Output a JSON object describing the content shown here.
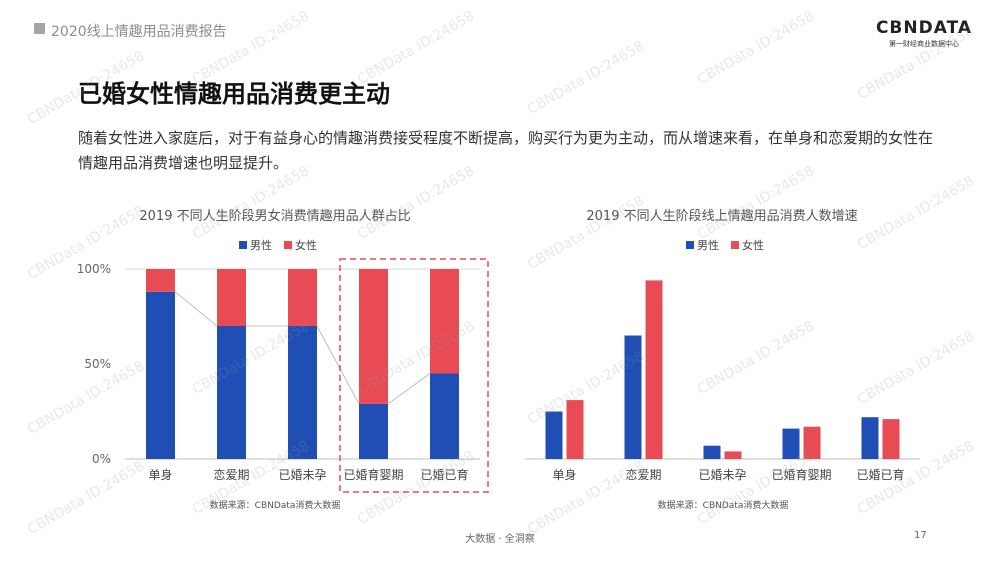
{
  "header": {
    "report_title": "2020线上情趣用品消费报告"
  },
  "logo": {
    "name": "CBNDATA",
    "tagline": "第一财经商业数据中心"
  },
  "page": {
    "title": "已婚女性情趣用品消费更主动",
    "description": "随着女性进入家庭后，对于有益身心的情趣消费接受程度不断提高，购买行为更为主动，而从增速来看，在单身和恋爱期的女性在情趣用品消费增速也明显提升。"
  },
  "watermark": "CBNData ID:24658",
  "footer": {
    "center": "大数据 · 全洞察",
    "page_number": "17"
  },
  "colors": {
    "male": "#1f4fb5",
    "female": "#e94b55",
    "highlight": "#e94b55",
    "grid": "#d9d9d9"
  },
  "chart_data": [
    {
      "type": "bar",
      "stacked": true,
      "title": "2019 不同人生阶段男女消费情趣用品人群占比",
      "categories": [
        "单身",
        "恋爱期",
        "已婚未孕",
        "已婚育婴期",
        "已婚已育"
      ],
      "series": [
        {
          "name": "男性",
          "values": [
            88,
            70,
            70,
            29,
            45
          ]
        },
        {
          "name": "女性",
          "values": [
            12,
            30,
            30,
            71,
            55
          ]
        }
      ],
      "yticks": [
        "0%",
        "50%",
        "100%"
      ],
      "ylim": [
        0,
        100
      ],
      "legend": "top-center",
      "highlight_categories": [
        "已婚育婴期",
        "已婚已育"
      ],
      "source": "数据来源：CBNData消费大数据"
    },
    {
      "type": "bar",
      "title": "2019 不同人生阶段线上情趣用品消费人数增速",
      "categories": [
        "单身",
        "恋爱期",
        "已婚未孕",
        "已婚育婴期",
        "已婚已育"
      ],
      "series": [
        {
          "name": "男性",
          "values": [
            25,
            65,
            7,
            16,
            22
          ]
        },
        {
          "name": "女性",
          "values": [
            31,
            94,
            4,
            17,
            21
          ]
        }
      ],
      "ylim": [
        0,
        100
      ],
      "legend": "top-center",
      "source": "数据来源：CBNData消费大数据"
    }
  ]
}
